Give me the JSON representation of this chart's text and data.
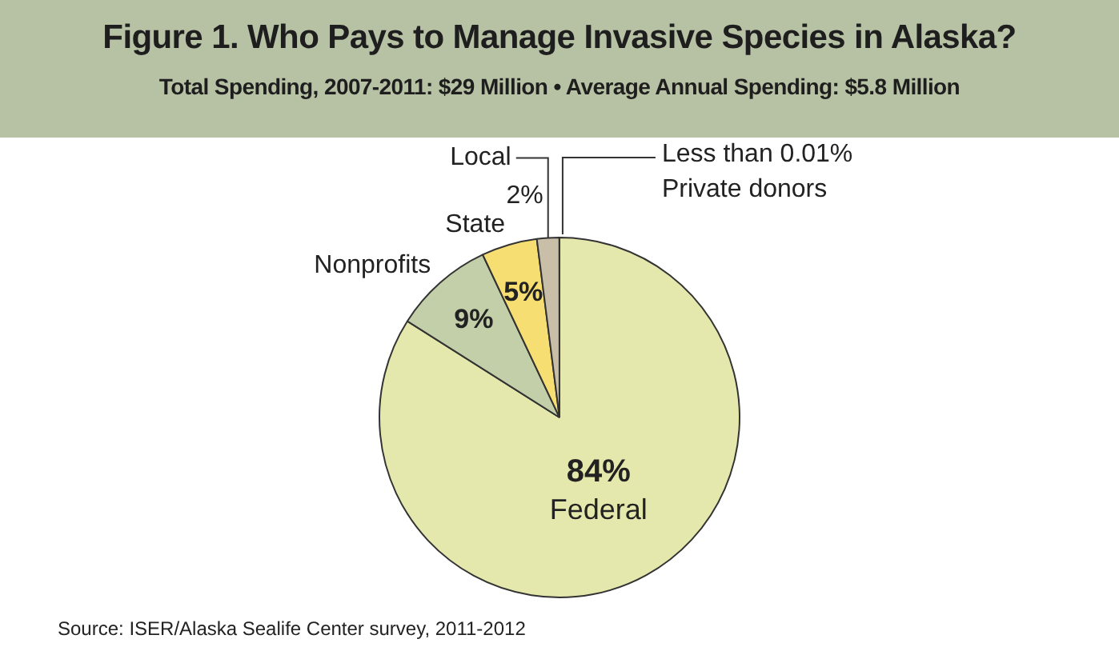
{
  "chart_data": {
    "type": "pie",
    "title": "Figure 1. Who Pays to Manage Invasive Species in Alaska?",
    "subtitle": "Total Spending, 2007-2011: $29 Million • Average Annual Spending: $5.8 Million",
    "categories": [
      "Federal",
      "Nonprofits",
      "State",
      "Local",
      "Private donors"
    ],
    "values": [
      84,
      9,
      5,
      2,
      0.01
    ],
    "value_labels": [
      "84%",
      "9%",
      "5%",
      "2%",
      "Less than 0.01%"
    ],
    "colors": [
      "#e5e8ac",
      "#c3cfa8",
      "#f6de72",
      "#c9bea8",
      "#c8743c"
    ],
    "legend": false,
    "annotations": [
      "Source: ISER/Alaska Sealife Center survey, 2011-2012"
    ]
  }
}
